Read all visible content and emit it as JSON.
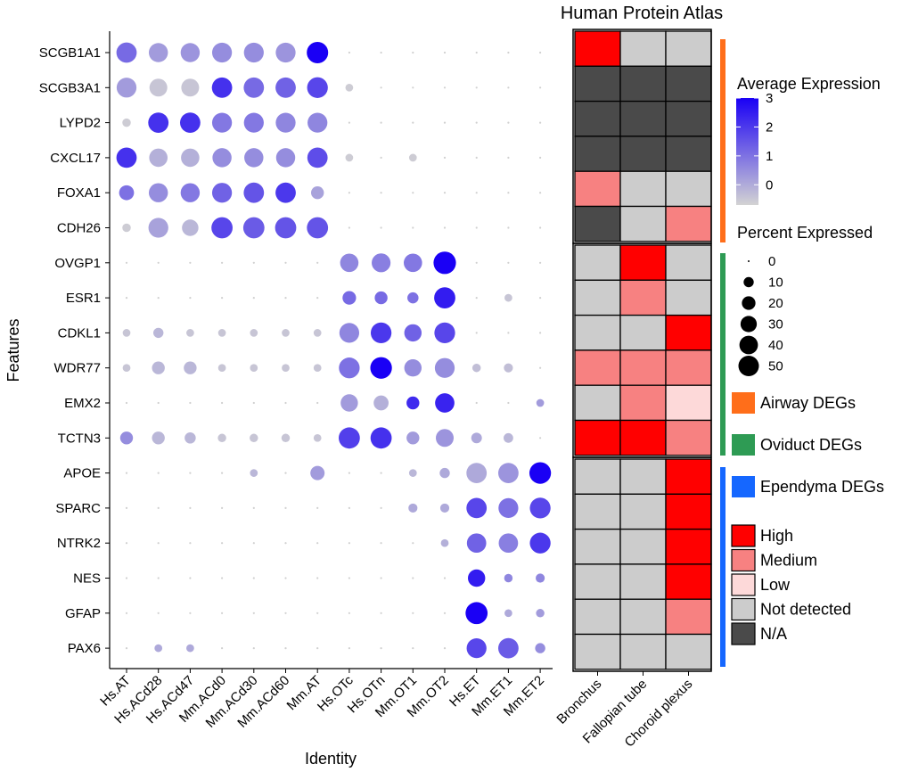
{
  "chart_data": [
    {
      "type": "scatter",
      "subtype": "dot-plot",
      "xlabel": "Identity",
      "ylabel": "Features",
      "identities": [
        "Hs.AT",
        "Hs.ACd28",
        "Hs.ACd47",
        "Mm.ACd0",
        "Mm.ACd30",
        "Mm.ACd60",
        "Mm.AT",
        "Hs.OTc",
        "Hs.OTn",
        "Mm.OT1",
        "Mm.OT2",
        "Hs.ET",
        "Mm.ET1",
        "Mm.ET2"
      ],
      "features": [
        "SCGB1A1",
        "SCGB3A1",
        "LYPD2",
        "CXCL17",
        "FOXA1",
        "CDH26",
        "OVGP1",
        "ESR1",
        "CDKL1",
        "WDR77",
        "EMX2",
        "TCTN3",
        "APOE",
        "SPARC",
        "NTRK2",
        "NES",
        "GFAP",
        "PAX6"
      ],
      "percent_expressed": [
        [
          40,
          35,
          35,
          38,
          38,
          38,
          45,
          0,
          0,
          0,
          0,
          0,
          0,
          0
        ],
        [
          38,
          30,
          30,
          40,
          40,
          40,
          42,
          4,
          0,
          0,
          0,
          0,
          0,
          0
        ],
        [
          5,
          40,
          40,
          38,
          38,
          38,
          38,
          0,
          0,
          0,
          0,
          0,
          0,
          0
        ],
        [
          40,
          32,
          32,
          35,
          35,
          35,
          40,
          4,
          0,
          4,
          0,
          0,
          0,
          0
        ],
        [
          20,
          35,
          35,
          38,
          40,
          40,
          14,
          0,
          0,
          0,
          0,
          0,
          0,
          0
        ],
        [
          5,
          38,
          25,
          44,
          44,
          44,
          44,
          0,
          0,
          0,
          0,
          0,
          0,
          0
        ],
        [
          0,
          0,
          0,
          0,
          0,
          0,
          0,
          32,
          34,
          32,
          50,
          0,
          0,
          0
        ],
        [
          0,
          0,
          0,
          0,
          0,
          0,
          0,
          16,
          14,
          10,
          44,
          0,
          4,
          0
        ],
        [
          4,
          8,
          4,
          4,
          4,
          4,
          4,
          38,
          42,
          28,
          42,
          0,
          0,
          0
        ],
        [
          4,
          14,
          14,
          4,
          4,
          4,
          4,
          42,
          46,
          28,
          38,
          5,
          6,
          0
        ],
        [
          0,
          0,
          0,
          0,
          0,
          0,
          0,
          28,
          20,
          14,
          36,
          0,
          0,
          4
        ],
        [
          14,
          14,
          10,
          5,
          5,
          5,
          4,
          44,
          44,
          14,
          30,
          9,
          7,
          0
        ],
        [
          0,
          0,
          0,
          0,
          4,
          0,
          18,
          0,
          0,
          4,
          8,
          40,
          40,
          46
        ],
        [
          0,
          0,
          0,
          0,
          0,
          0,
          0,
          0,
          0,
          6,
          6,
          40,
          38,
          42
        ],
        [
          0,
          0,
          0,
          0,
          0,
          0,
          0,
          0,
          0,
          0,
          4,
          36,
          36,
          42
        ],
        [
          0,
          0,
          0,
          0,
          0,
          0,
          0,
          0,
          0,
          0,
          0,
          28,
          5,
          6
        ],
        [
          0,
          0,
          0,
          0,
          0,
          0,
          0,
          0,
          0,
          0,
          0,
          48,
          4,
          5
        ],
        [
          0,
          4,
          4,
          0,
          0,
          0,
          0,
          0,
          0,
          0,
          0,
          38,
          40,
          8
        ]
      ],
      "average_expression": [
        [
          1.5,
          0.8,
          0.9,
          1.0,
          1.0,
          0.9,
          3.0,
          0,
          0,
          0,
          0,
          0,
          0,
          0
        ],
        [
          0.8,
          0.2,
          0.2,
          2.3,
          1.5,
          1.6,
          2.0,
          0.1,
          0,
          0,
          0,
          0,
          0,
          0
        ],
        [
          0.1,
          2.3,
          2.3,
          1.3,
          1.3,
          1.1,
          1.1,
          0,
          0,
          0,
          0,
          0,
          0,
          0
        ],
        [
          2.3,
          0.5,
          0.5,
          1.0,
          1.0,
          1.0,
          1.9,
          0.1,
          0,
          0.1,
          0,
          0,
          0,
          0
        ],
        [
          1.4,
          1.0,
          1.3,
          1.6,
          1.8,
          2.2,
          0.7,
          0,
          0,
          0,
          0,
          0,
          0,
          0
        ],
        [
          0.1,
          0.7,
          0.4,
          2.0,
          1.7,
          1.8,
          1.8,
          0,
          0,
          0,
          0,
          0,
          0,
          0
        ],
        [
          0,
          0,
          0,
          0,
          0,
          0,
          0,
          1.1,
          1.2,
          1.3,
          3.0,
          0,
          0,
          0
        ],
        [
          0,
          0,
          0,
          0,
          0,
          0,
          0,
          1.5,
          1.5,
          1.4,
          2.6,
          0,
          0.2,
          0
        ],
        [
          0.2,
          0.4,
          0.2,
          0.2,
          0.2,
          0.2,
          0.2,
          1.1,
          2.2,
          1.6,
          2.0,
          0,
          0,
          0
        ],
        [
          0.2,
          0.4,
          0.4,
          0.2,
          0.2,
          0.2,
          0.2,
          1.4,
          3.0,
          1.0,
          1.0,
          0.3,
          0.3,
          0
        ],
        [
          0,
          0,
          0,
          0,
          0,
          0,
          0,
          0.8,
          0.5,
          2.4,
          2.5,
          0,
          0,
          0.8
        ],
        [
          1.0,
          0.4,
          0.4,
          0.2,
          0.2,
          0.2,
          0.2,
          2.1,
          2.3,
          0.8,
          0.9,
          0.6,
          0.4,
          0
        ],
        [
          0,
          0,
          0,
          0,
          0.4,
          0,
          0.8,
          0,
          0,
          0.4,
          0.6,
          0.6,
          0.9,
          3.0
        ],
        [
          0,
          0,
          0,
          0,
          0,
          0,
          0,
          0,
          0,
          0.6,
          0.6,
          2.0,
          1.4,
          2.0
        ],
        [
          0,
          0,
          0,
          0,
          0,
          0,
          0,
          0,
          0,
          0,
          0.5,
          1.6,
          1.2,
          2.2
        ],
        [
          0,
          0,
          0,
          0,
          0,
          0,
          0,
          0,
          0,
          0,
          0,
          2.6,
          1.1,
          1.1
        ],
        [
          0,
          0,
          0,
          0,
          0,
          0,
          0,
          0,
          0,
          0,
          0,
          3.0,
          0.6,
          0.8
        ],
        [
          0,
          0.6,
          0.6,
          0,
          0,
          0,
          0,
          0,
          0,
          0,
          0,
          2.0,
          1.7,
          1.0
        ]
      ]
    },
    {
      "type": "heatmap",
      "title": "Human Protein Atlas",
      "tissues": [
        "Bronchus",
        "Fallopian tube",
        "Choroid plexus"
      ],
      "levels": [
        [
          "High",
          "Not detected",
          "Not detected"
        ],
        [
          "N/A",
          "N/A",
          "N/A"
        ],
        [
          "N/A",
          "N/A",
          "N/A"
        ],
        [
          "N/A",
          "N/A",
          "N/A"
        ],
        [
          "Medium",
          "Not detected",
          "Not detected"
        ],
        [
          "N/A",
          "Not detected",
          "Medium"
        ],
        [
          "Not detected",
          "High",
          "Not detected"
        ],
        [
          "Not detected",
          "Medium",
          "Not detected"
        ],
        [
          "Not detected",
          "Not detected",
          "High"
        ],
        [
          "Medium",
          "Medium",
          "Medium"
        ],
        [
          "Not detected",
          "Medium",
          "Low"
        ],
        [
          "High",
          "High",
          "Medium"
        ],
        [
          "Not detected",
          "Not detected",
          "High"
        ],
        [
          "Not detected",
          "Not detected",
          "High"
        ],
        [
          "Not detected",
          "Not detected",
          "High"
        ],
        [
          "Not detected",
          "Not detected",
          "High"
        ],
        [
          "Not detected",
          "Not detected",
          "Medium"
        ],
        [
          "Not detected",
          "Not detected",
          "Not detected"
        ]
      ],
      "level_colors": {
        "High": "#ff0000",
        "Medium": "#f78181",
        "Low": "#fdd9d9",
        "Not detected": "#cccccc",
        "N/A": "#4a4a4a"
      }
    }
  ],
  "legends": {
    "avg_expression": {
      "title": "Average Expression",
      "ticks": [
        "3",
        "2",
        "1",
        "0"
      ],
      "low_color": "#d3d3d3",
      "high_color": "#1a00f5"
    },
    "percent_expressed": {
      "title": "Percent Expressed",
      "labels": [
        "0",
        "10",
        "20",
        "30",
        "40",
        "50"
      ]
    },
    "deg_groups": [
      {
        "label": "Airway DEGs",
        "color": "#ff6e1a"
      },
      {
        "label": "Oviduct DEGs",
        "color": "#2e9b54"
      },
      {
        "label": "Ependyma DEGs",
        "color": "#1567ff"
      }
    ],
    "hpa_levels": [
      "High",
      "Medium",
      "Low",
      "Not detected",
      "N/A"
    ]
  }
}
